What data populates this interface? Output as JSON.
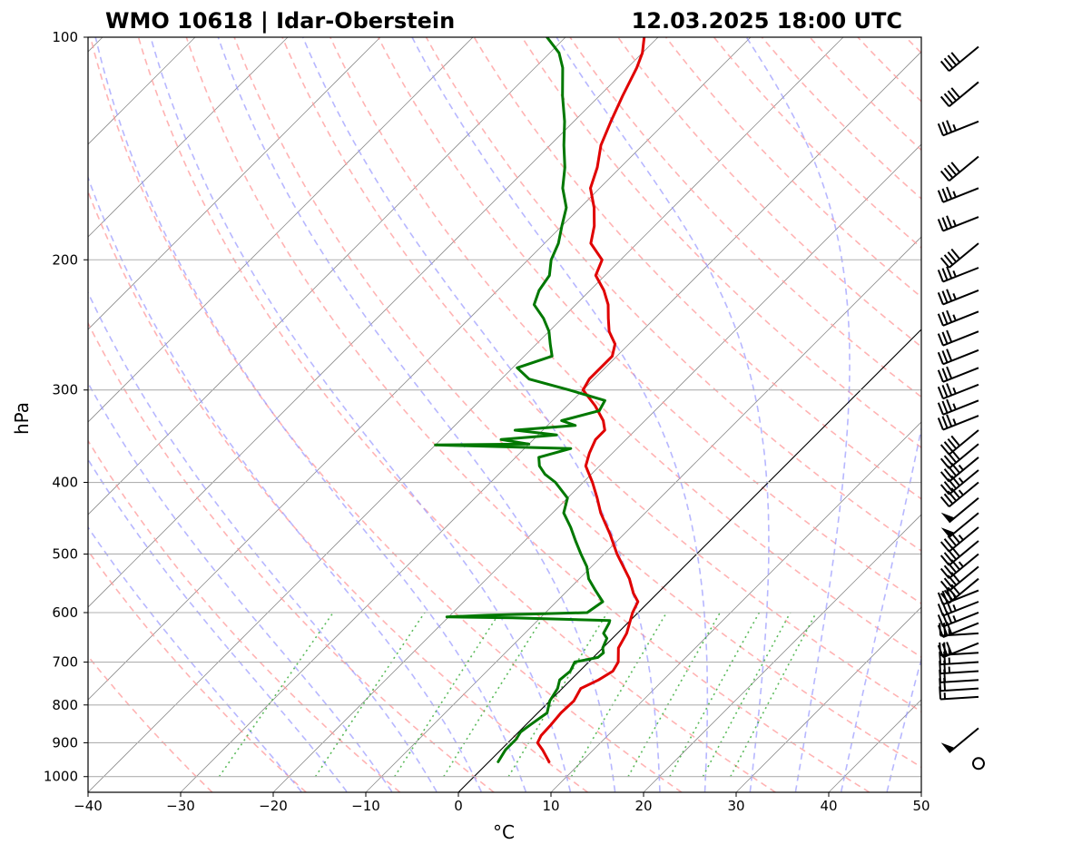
{
  "chart_data": {
    "type": "skew-t",
    "title_left": "WMO 10618 | Idar-Oberstein",
    "title_right": "12.03.2025 18:00 UTC",
    "xlabel": "°C",
    "ylabel": "hPa",
    "xlim": [
      -40,
      50
    ],
    "ylim": [
      1050,
      100
    ],
    "y_scale": "log",
    "x_ticks": [
      -40,
      -30,
      -20,
      -10,
      0,
      10,
      20,
      30,
      40,
      50
    ],
    "x_tick_labels": [
      "−40",
      "−30",
      "−20",
      "−10",
      "0",
      "10",
      "20",
      "30",
      "40",
      "50"
    ],
    "y_ticks": [
      1000,
      900,
      800,
      700,
      600,
      500,
      400,
      300,
      200,
      100
    ],
    "y_tick_labels": [
      "1000",
      "900",
      "800",
      "700",
      "600",
      "500",
      "400",
      "300",
      "200",
      "100"
    ],
    "grid": true,
    "background_lines": {
      "isotherm_color": "#808080",
      "dry_adiabat_color": "#ff9999",
      "moist_adiabat_color": "#9999ff",
      "mixing_ratio_color": "#33aa33",
      "zero_isotherm_color": "#000000"
    },
    "series": [
      {
        "color": "#e00000",
        "kind": "temperature",
        "points": [
          [
            955,
            6.5
          ],
          [
            920,
            4.5
          ],
          [
            900,
            3.2
          ],
          [
            880,
            2.8
          ],
          [
            850,
            2.7
          ],
          [
            820,
            2.5
          ],
          [
            790,
            2.6
          ],
          [
            760,
            2.0
          ],
          [
            740,
            3.0
          ],
          [
            720,
            3.6
          ],
          [
            700,
            3.2
          ],
          [
            670,
            1.7
          ],
          [
            640,
            1.0
          ],
          [
            600,
            -0.6
          ],
          [
            580,
            -1.2
          ],
          [
            565,
            -2.6
          ],
          [
            540,
            -4.6
          ],
          [
            500,
            -8.6
          ],
          [
            470,
            -11.5
          ],
          [
            440,
            -14.8
          ],
          [
            420,
            -16.8
          ],
          [
            400,
            -19.0
          ],
          [
            380,
            -21.5
          ],
          [
            365,
            -22.5
          ],
          [
            350,
            -23.3
          ],
          [
            340,
            -23.3
          ],
          [
            330,
            -24.5
          ],
          [
            315,
            -27.0
          ],
          [
            300,
            -30.0
          ],
          [
            290,
            -30.5
          ],
          [
            280,
            -30.5
          ],
          [
            270,
            -30.5
          ],
          [
            260,
            -31.5
          ],
          [
            250,
            -33.5
          ],
          [
            240,
            -35.0
          ],
          [
            230,
            -36.5
          ],
          [
            220,
            -38.5
          ],
          [
            210,
            -41.0
          ],
          [
            200,
            -42.0
          ],
          [
            190,
            -45.0
          ],
          [
            180,
            -46.5
          ],
          [
            170,
            -48.5
          ],
          [
            160,
            -51.0
          ],
          [
            150,
            -52.5
          ],
          [
            140,
            -54.5
          ],
          [
            130,
            -56.0
          ],
          [
            120,
            -57.5
          ],
          [
            110,
            -59.0
          ],
          [
            105,
            -60.0
          ],
          [
            100,
            -61.5
          ]
        ]
      },
      {
        "color": "#007800",
        "kind": "dewpoint",
        "points": [
          [
            955,
            1.0
          ],
          [
            920,
            0.5
          ],
          [
            890,
            0.5
          ],
          [
            870,
            0.2
          ],
          [
            850,
            0.5
          ],
          [
            820,
            1.0
          ],
          [
            790,
            0.0
          ],
          [
            760,
            -0.5
          ],
          [
            740,
            -1.2
          ],
          [
            720,
            -1.0
          ],
          [
            700,
            -1.5
          ],
          [
            690,
            0.5
          ],
          [
            680,
            0.6
          ],
          [
            670,
            0.0
          ],
          [
            650,
            -0.6
          ],
          [
            640,
            -1.5
          ],
          [
            620,
            -2.0
          ],
          [
            615,
            -2.2
          ],
          [
            610,
            -13.0
          ],
          [
            608,
            -20.2
          ],
          [
            605,
            -16.0
          ],
          [
            600,
            -5.5
          ],
          [
            580,
            -5.0
          ],
          [
            560,
            -7.0
          ],
          [
            540,
            -9.0
          ],
          [
            520,
            -10.5
          ],
          [
            500,
            -12.5
          ],
          [
            480,
            -14.5
          ],
          [
            460,
            -16.5
          ],
          [
            440,
            -18.8
          ],
          [
            420,
            -20.0
          ],
          [
            400,
            -23.0
          ],
          [
            390,
            -25.0
          ],
          [
            380,
            -26.5
          ],
          [
            370,
            -27.5
          ],
          [
            360,
            -25.0
          ],
          [
            356,
            -40.0
          ],
          [
            355,
            -30.0
          ],
          [
            350,
            -33.5
          ],
          [
            345,
            -28.0
          ],
          [
            340,
            -33.0
          ],
          [
            335,
            -27.0
          ],
          [
            330,
            -29.0
          ],
          [
            320,
            -26.0
          ],
          [
            310,
            -26.5
          ],
          [
            300,
            -31.5
          ],
          [
            290,
            -37.0
          ],
          [
            280,
            -39.5
          ],
          [
            270,
            -37.0
          ],
          [
            260,
            -38.5
          ],
          [
            250,
            -40.0
          ],
          [
            240,
            -42.0
          ],
          [
            230,
            -44.5
          ],
          [
            220,
            -45.5
          ],
          [
            210,
            -46.0
          ],
          [
            200,
            -47.5
          ],
          [
            190,
            -48.5
          ],
          [
            180,
            -50.0
          ],
          [
            170,
            -51.5
          ],
          [
            160,
            -54.0
          ],
          [
            150,
            -56.0
          ],
          [
            140,
            -58.5
          ],
          [
            130,
            -61.0
          ],
          [
            120,
            -64.0
          ],
          [
            110,
            -67.0
          ],
          [
            105,
            -69.0
          ],
          [
            100,
            -72.0
          ]
        ]
      }
    ],
    "wind_barbs": {
      "kts": [
        [
          2,
          1
        ],
        [
          50,
          2
        ],
        [
          15,
          3
        ],
        [
          20,
          4
        ],
        [
          20,
          5
        ],
        [
          25,
          6
        ],
        [
          25,
          7
        ],
        [
          25,
          8
        ],
        [
          30,
          9
        ],
        [
          25,
          10
        ],
        [
          30,
          11
        ],
        [
          35,
          12
        ],
        [
          35,
          13
        ],
        [
          35,
          14
        ],
        [
          40,
          15
        ],
        [
          40,
          16
        ],
        [
          45,
          17
        ],
        [
          40,
          18
        ],
        [
          45,
          19
        ],
        [
          50,
          20
        ],
        [
          50,
          21
        ],
        [
          45,
          22
        ],
        [
          45,
          23
        ],
        [
          45,
          24
        ],
        [
          40,
          25
        ],
        [
          40,
          26
        ],
        [
          35,
          27
        ],
        [
          35,
          28
        ],
        [
          35,
          29
        ],
        [
          30,
          30
        ],
        [
          30,
          31
        ],
        [
          30,
          32
        ],
        [
          35,
          33
        ],
        [
          35,
          34
        ],
        [
          35,
          35
        ],
        [
          40,
          36
        ],
        [
          35,
          37
        ],
        [
          35,
          38
        ],
        [
          40,
          39
        ],
        [
          35,
          40
        ],
        [
          40,
          41
        ],
        [
          40,
          42
        ]
      ],
      "levels_hpa": [
        960,
        860,
        780,
        760,
        740,
        720,
        700,
        680,
        660,
        640,
        620,
        600,
        580,
        560,
        540,
        520,
        500,
        480,
        460,
        440,
        420,
        400,
        385,
        370,
        355,
        340,
        325,
        310,
        295,
        280,
        265,
        250,
        235,
        220,
        205,
        190,
        175,
        160,
        145,
        130,
        115,
        103
      ]
    }
  }
}
